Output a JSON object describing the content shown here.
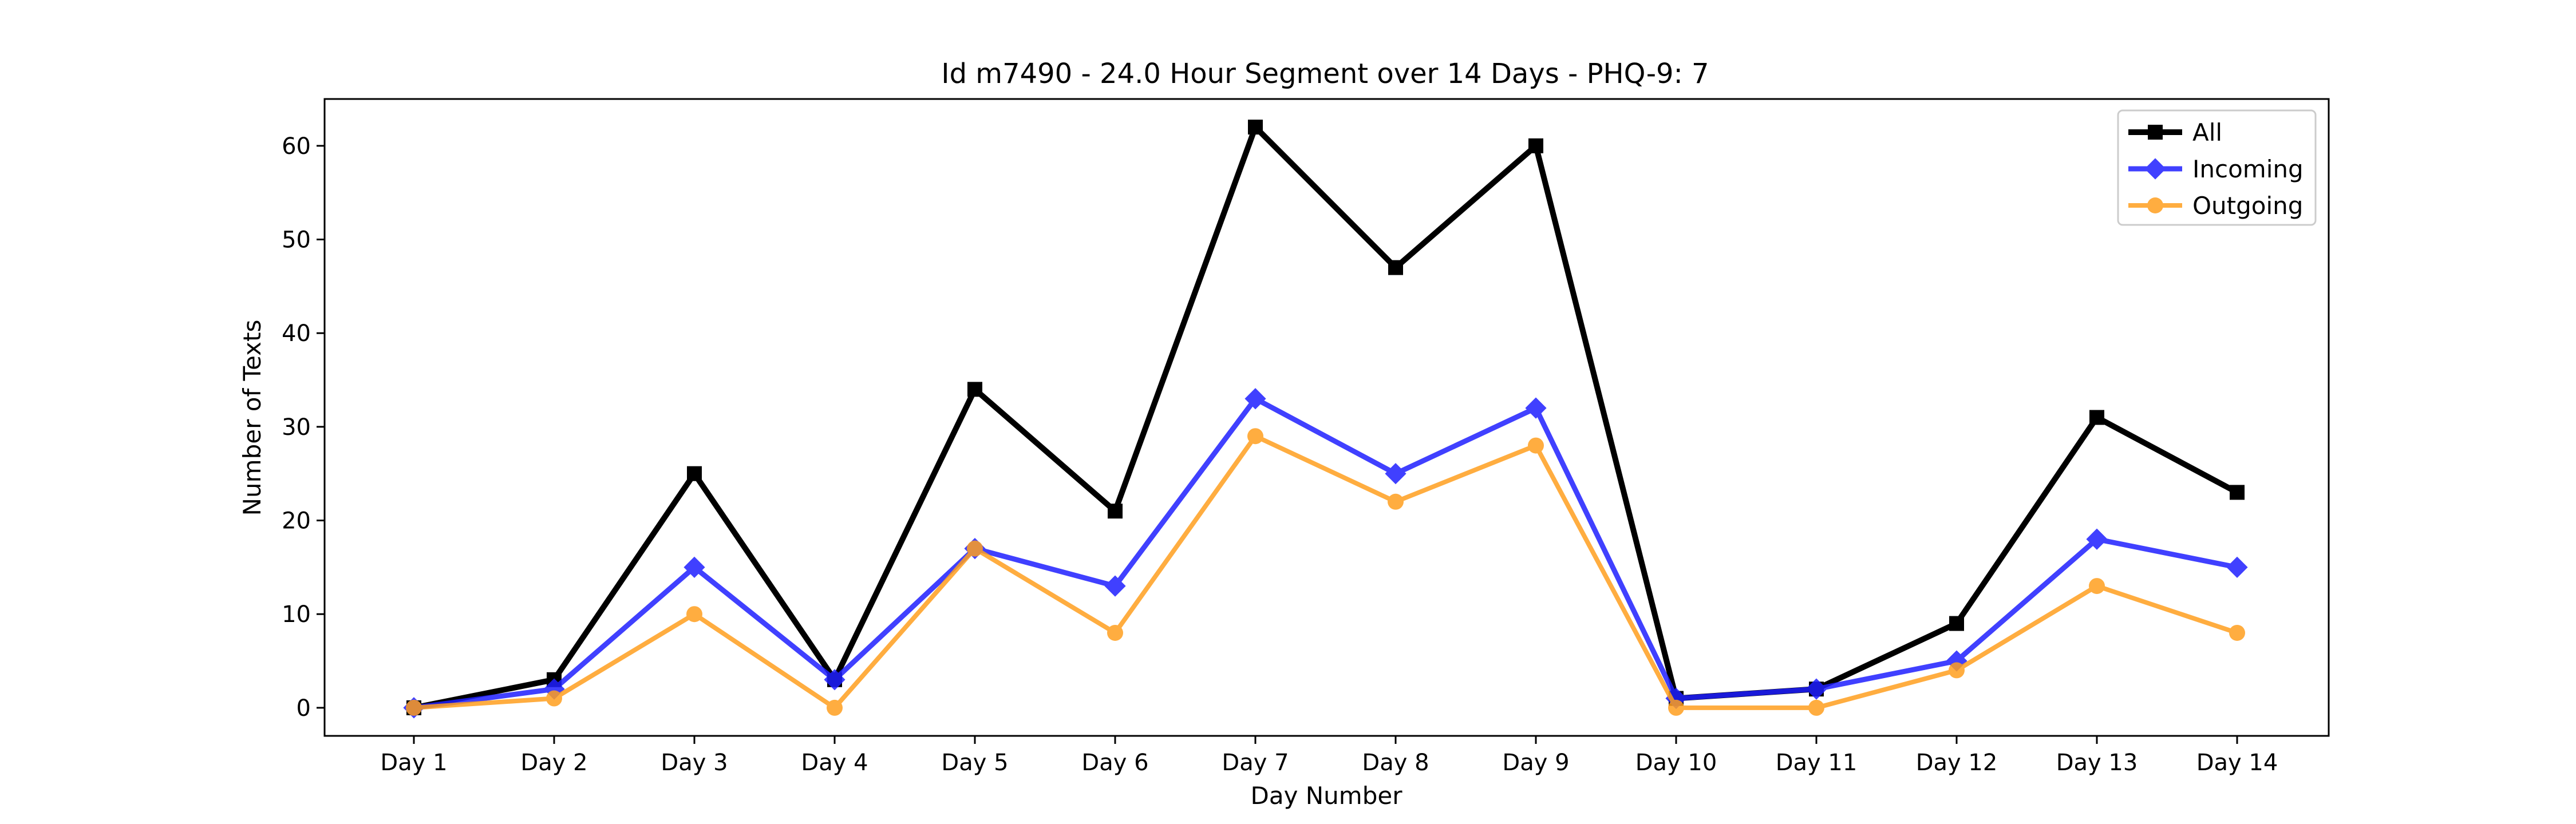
{
  "chart_data": {
    "type": "line",
    "title": "Id m7490 - 24.0 Hour Segment over 14 Days - PHQ-9: 7",
    "xlabel": "Day Number",
    "ylabel": "Number of Texts",
    "categories": [
      "Day 1",
      "Day 2",
      "Day 3",
      "Day 4",
      "Day 5",
      "Day 6",
      "Day 7",
      "Day 8",
      "Day 9",
      "Day 10",
      "Day 11",
      "Day 12",
      "Day 13",
      "Day 14"
    ],
    "ylim": [
      -3,
      65
    ],
    "yticks": [
      0,
      10,
      20,
      30,
      40,
      50,
      60
    ],
    "grid": false,
    "legend_position": "top-right",
    "series": [
      {
        "name": "All",
        "color": "#000000",
        "marker": "square",
        "values": [
          0,
          3,
          25,
          3,
          34,
          21,
          62,
          47,
          60,
          1,
          2,
          9,
          31,
          23
        ]
      },
      {
        "name": "Incoming",
        "color": "#1f1fff",
        "marker": "diamond",
        "values": [
          0,
          2,
          15,
          3,
          17,
          13,
          33,
          25,
          32,
          1,
          2,
          5,
          18,
          15
        ]
      },
      {
        "name": "Outgoing",
        "color": "#ff9f1f",
        "marker": "circle",
        "values": [
          0,
          1,
          10,
          0,
          17,
          8,
          29,
          22,
          28,
          0,
          0,
          4,
          13,
          8
        ]
      }
    ]
  }
}
